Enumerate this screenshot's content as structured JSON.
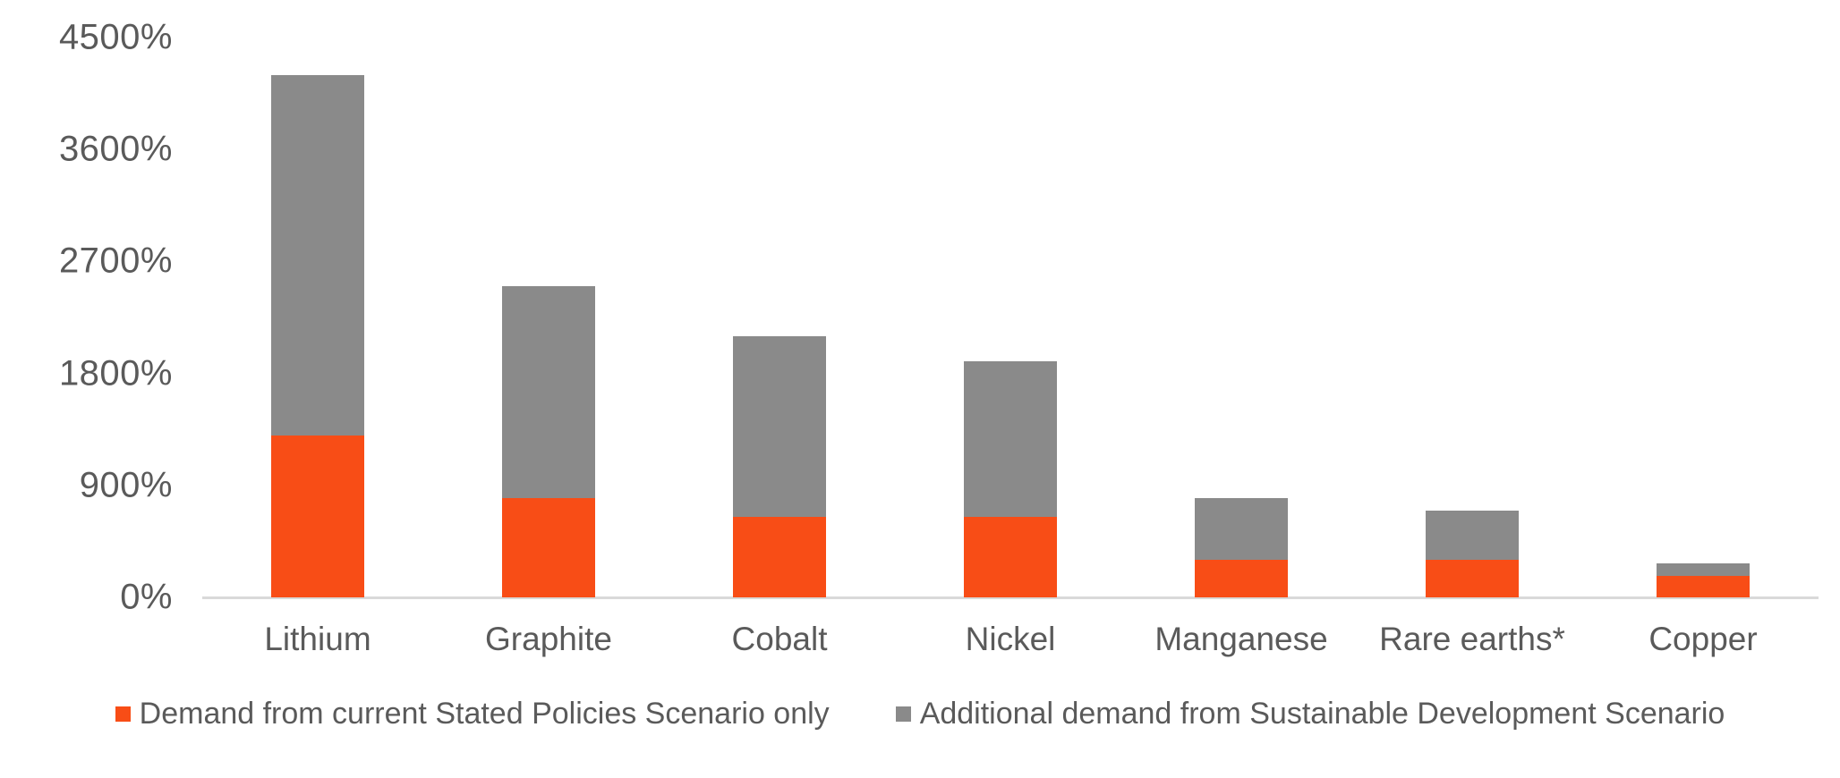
{
  "chart_data": {
    "type": "bar",
    "stacked": true,
    "title": "",
    "xlabel": "",
    "ylabel": "",
    "grid": false,
    "legend_position": "bottom",
    "categories": [
      "Lithium",
      "Graphite",
      "Cobalt",
      "Nickel",
      "Manganese",
      "Rare earths*",
      "Copper"
    ],
    "series": [
      {
        "name": "Demand from current Stated Policies Scenario only",
        "color": "#f84d16",
        "values": [
          1300,
          800,
          650,
          650,
          300,
          300,
          170
        ]
      },
      {
        "name": "Additional demand from Sustainable Development Scenario",
        "color": "#8a8a8a",
        "values": [
          2900,
          1700,
          1450,
          1250,
          500,
          400,
          100
        ]
      }
    ],
    "totals": [
      4200,
      2500,
      2100,
      1900,
      800,
      700,
      270
    ],
    "y_axis": {
      "unit": "%",
      "min": 0,
      "max": 4500,
      "tick_values": [
        4500,
        3600,
        2700,
        1800,
        900,
        0
      ],
      "tick_labels": [
        "4500%",
        "3600%",
        "2700%",
        "1800%",
        "900%",
        "0%"
      ]
    }
  },
  "colors": {
    "steps_orange": "#f84d16",
    "sds_gray": "#8a8a8a",
    "axis_line": "#d9d9d9",
    "text": "#5a5a5a",
    "background": "#ffffff"
  }
}
